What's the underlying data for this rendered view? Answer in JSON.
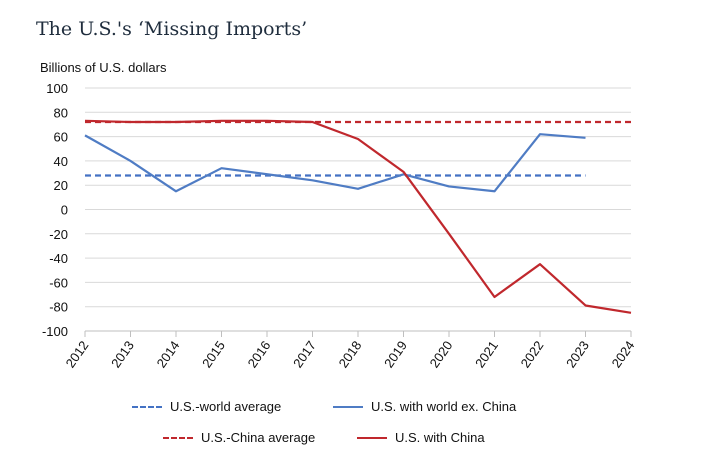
{
  "title": "The U.S.'s ‘Missing Imports’",
  "chart_data": {
    "type": "line",
    "ylabel": "Billions of U.S. dollars",
    "ylim": [
      -100,
      100
    ],
    "yticks": [
      100,
      80,
      60,
      40,
      20,
      0,
      -20,
      -40,
      -60,
      -80,
      -100
    ],
    "x": [
      2012,
      2013,
      2014,
      2015,
      2016,
      2017,
      2018,
      2019,
      2020,
      2021,
      2022,
      2023,
      2024
    ],
    "grid": true,
    "legend_position": "bottom",
    "series": [
      {
        "name": "U.S.-world average",
        "style": "dashed",
        "color": "#4472c4",
        "x": [
          2012,
          2023
        ],
        "values": [
          28,
          28
        ]
      },
      {
        "name": "U.S. with world ex. China",
        "style": "solid",
        "color": "#4f7cc4",
        "x": [
          2012,
          2013,
          2014,
          2015,
          2016,
          2017,
          2018,
          2019,
          2020,
          2021,
          2022,
          2023
        ],
        "values": [
          61,
          40,
          15,
          34,
          29,
          24,
          17,
          29,
          19,
          15,
          62,
          59
        ]
      },
      {
        "name": "U.S.-China average",
        "style": "dashed",
        "color": "#c0282d",
        "x": [
          2012,
          2024
        ],
        "values": [
          72,
          72
        ]
      },
      {
        "name": "U.S. with China",
        "style": "solid",
        "color": "#c0282d",
        "x": [
          2012,
          2013,
          2014,
          2015,
          2016,
          2017,
          2018,
          2019,
          2020,
          2021,
          2022,
          2023,
          2024
        ],
        "values": [
          73,
          72,
          72,
          73,
          73,
          72,
          58,
          31,
          -20,
          -72,
          -45,
          -79,
          -85
        ]
      }
    ]
  }
}
